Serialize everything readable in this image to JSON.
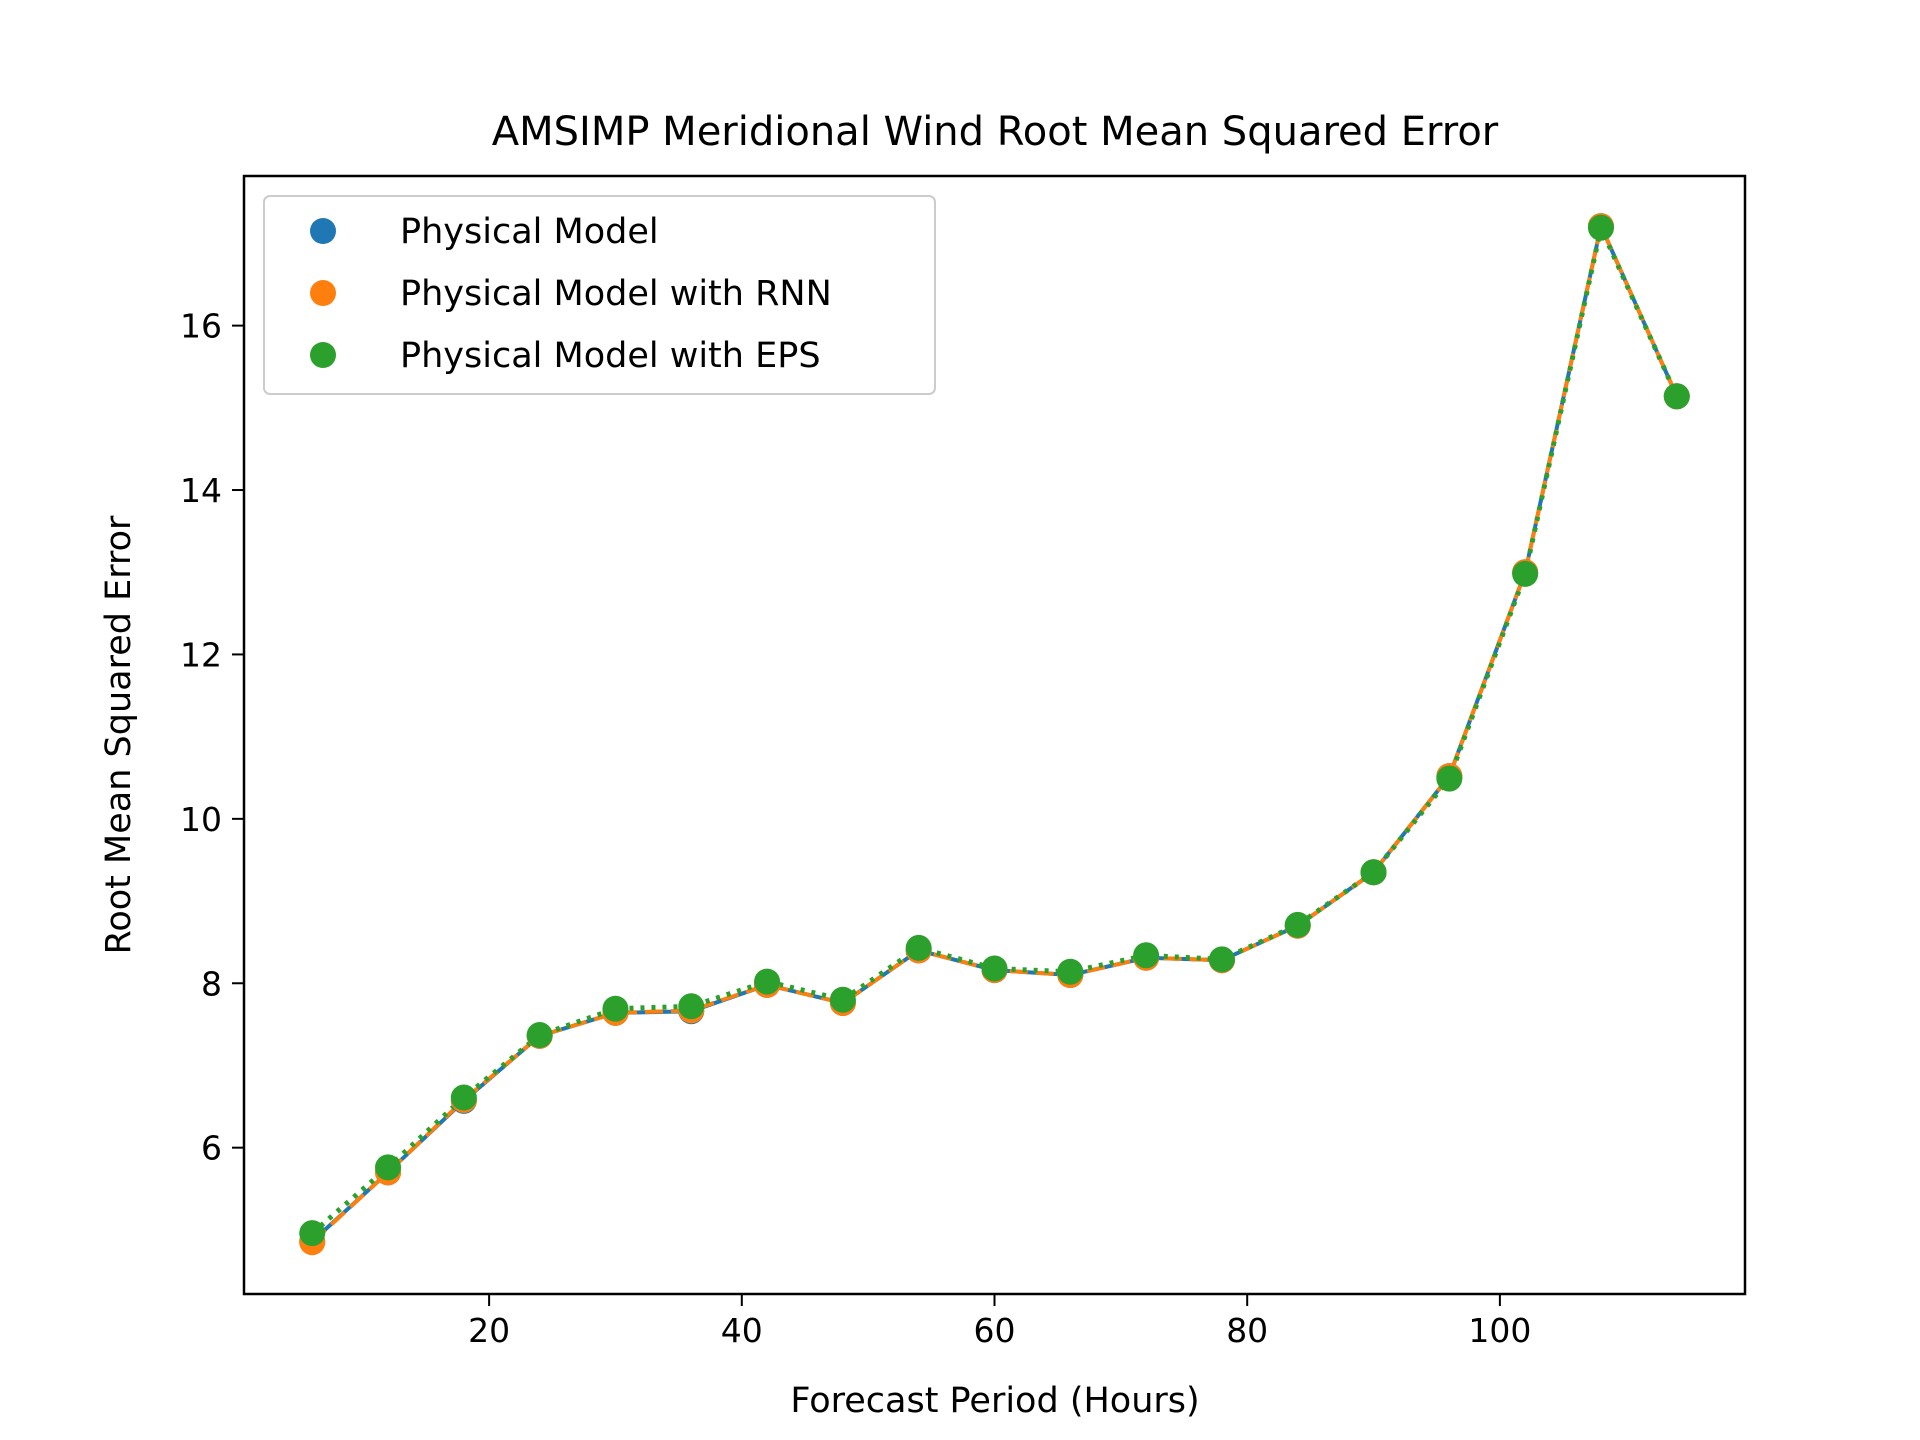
{
  "chart_data": {
    "type": "line",
    "title": "AMSIMP Meridional Wind Root Mean Squared Error",
    "xlabel": "Forecast Period (Hours)",
    "ylabel": "Root Mean Squared Error",
    "xlim": [
      0.6,
      119.4
    ],
    "ylim": [
      4.22,
      17.82
    ],
    "xticks": [
      20,
      40,
      60,
      80,
      100
    ],
    "yticks": [
      6,
      8,
      10,
      12,
      14,
      16
    ],
    "grid": false,
    "legend_position": "upper-left",
    "x": [
      6,
      12,
      18,
      24,
      30,
      36,
      42,
      48,
      54,
      60,
      66,
      72,
      78,
      84,
      90,
      96,
      102,
      108,
      114
    ],
    "series": [
      {
        "name": "Physical Model",
        "color": "#1f77b4",
        "line_style": "solid",
        "values": [
          4.86,
          5.7,
          6.57,
          7.36,
          7.64,
          7.66,
          7.98,
          7.76,
          8.4,
          8.16,
          8.1,
          8.31,
          8.28,
          8.7,
          9.35,
          10.52,
          13.0,
          17.21,
          15.14
        ]
      },
      {
        "name": "Physical Model with RNN",
        "color": "#ff7f0e",
        "line_style": "dashed",
        "values": [
          4.85,
          5.7,
          6.58,
          7.36,
          7.64,
          7.67,
          7.98,
          7.76,
          8.4,
          8.16,
          8.1,
          8.31,
          8.28,
          8.7,
          9.35,
          10.52,
          13.0,
          17.21,
          15.14
        ]
      },
      {
        "name": "Physical Model with EPS",
        "color": "#2ca02c",
        "line_style": "dotted",
        "values": [
          4.96,
          5.76,
          6.61,
          7.37,
          7.69,
          7.72,
          8.02,
          7.8,
          8.43,
          8.18,
          8.14,
          8.34,
          8.29,
          8.71,
          9.35,
          10.49,
          12.98,
          17.19,
          15.14
        ]
      }
    ]
  }
}
